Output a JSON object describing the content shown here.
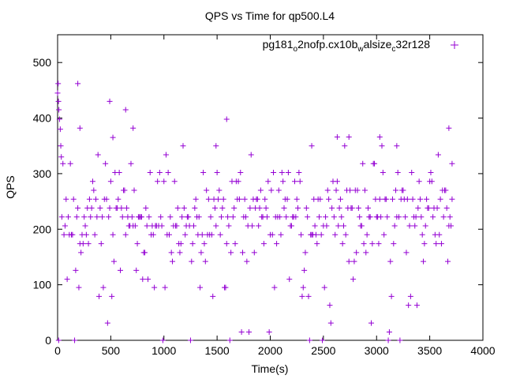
{
  "chart_data": {
    "type": "scatter",
    "title": "QPS vs Time for qp500.L4",
    "xlabel": "Time(s)",
    "ylabel": "QPS",
    "xlim": [
      0,
      4000
    ],
    "ylim": [
      0,
      550
    ],
    "x_ticks": [
      0,
      500,
      1000,
      1500,
      2000,
      2500,
      3000,
      3500,
      4000
    ],
    "y_ticks": [
      0,
      100,
      200,
      300,
      400,
      500
    ],
    "grid": false,
    "legend_position": "top-right",
    "marker": "plus",
    "series": [
      {
        "name": "pg181_o2nofp.cx10b_walsize_c32r128",
        "legend_parts": [
          {
            "text": "pg181",
            "sub": false
          },
          {
            "text": "o",
            "sub": true
          },
          {
            "text": "2nofp.cx10b",
            "sub": false
          },
          {
            "text": "w",
            "sub": true
          },
          {
            "text": "alsize",
            "sub": false
          },
          {
            "text": "c",
            "sub": true
          },
          {
            "text": "32r128",
            "sub": false
          }
        ],
        "color": "#9400d3",
        "x_range": [
          0,
          3710
        ],
        "sample_interval_s": 10,
        "dominant_levels": [
          {
            "y": 222,
            "share": 0.14
          },
          {
            "y": 206,
            "share": 0.12
          },
          {
            "y": 238,
            "share": 0.11
          },
          {
            "y": 190,
            "share": 0.09
          },
          {
            "y": 254,
            "share": 0.09
          },
          {
            "y": 270,
            "share": 0.07
          },
          {
            "y": 174,
            "share": 0.06
          },
          {
            "y": 286,
            "share": 0.05
          },
          {
            "y": 158,
            "share": 0.04
          },
          {
            "y": 302,
            "share": 0.03
          },
          {
            "y": 142,
            "share": 0.03
          },
          {
            "y": 126,
            "share": 0.02
          },
          {
            "y": 318,
            "share": 0.02
          },
          {
            "y": 110,
            "share": 0.015
          },
          {
            "y": 95,
            "share": 0.015
          },
          {
            "y": 79,
            "share": 0.012
          },
          {
            "y": 63,
            "share": 0.012
          },
          {
            "y": 47,
            "share": 0.01
          },
          {
            "y": 31,
            "share": 0.01
          },
          {
            "y": 15,
            "share": 0.008
          },
          {
            "y": 0,
            "share": 0.012
          },
          {
            "y": 334,
            "share": 0.008
          },
          {
            "y": 350,
            "share": 0.006
          },
          {
            "y": 366,
            "share": 0.004
          }
        ],
        "outliers": [
          {
            "x": 0,
            "y": 445
          },
          {
            "x": 5,
            "y": 462
          },
          {
            "x": 8,
            "y": 430
          },
          {
            "x": 12,
            "y": 415
          },
          {
            "x": 18,
            "y": 398
          },
          {
            "x": 25,
            "y": 380
          },
          {
            "x": 30,
            "y": 350
          },
          {
            "x": 35,
            "y": 330
          },
          {
            "x": 10,
            "y": 0
          },
          {
            "x": 190,
            "y": 462
          },
          {
            "x": 210,
            "y": 382
          },
          {
            "x": 490,
            "y": 430
          },
          {
            "x": 520,
            "y": 365
          },
          {
            "x": 640,
            "y": 415
          },
          {
            "x": 710,
            "y": 382
          },
          {
            "x": 1490,
            "y": 350
          },
          {
            "x": 1590,
            "y": 398
          },
          {
            "x": 2390,
            "y": 350
          },
          {
            "x": 2630,
            "y": 366
          },
          {
            "x": 2740,
            "y": 366
          },
          {
            "x": 3030,
            "y": 366
          },
          {
            "x": 3190,
            "y": 350
          },
          {
            "x": 3680,
            "y": 382
          },
          {
            "x": 3710,
            "y": 318
          }
        ]
      }
    ]
  }
}
